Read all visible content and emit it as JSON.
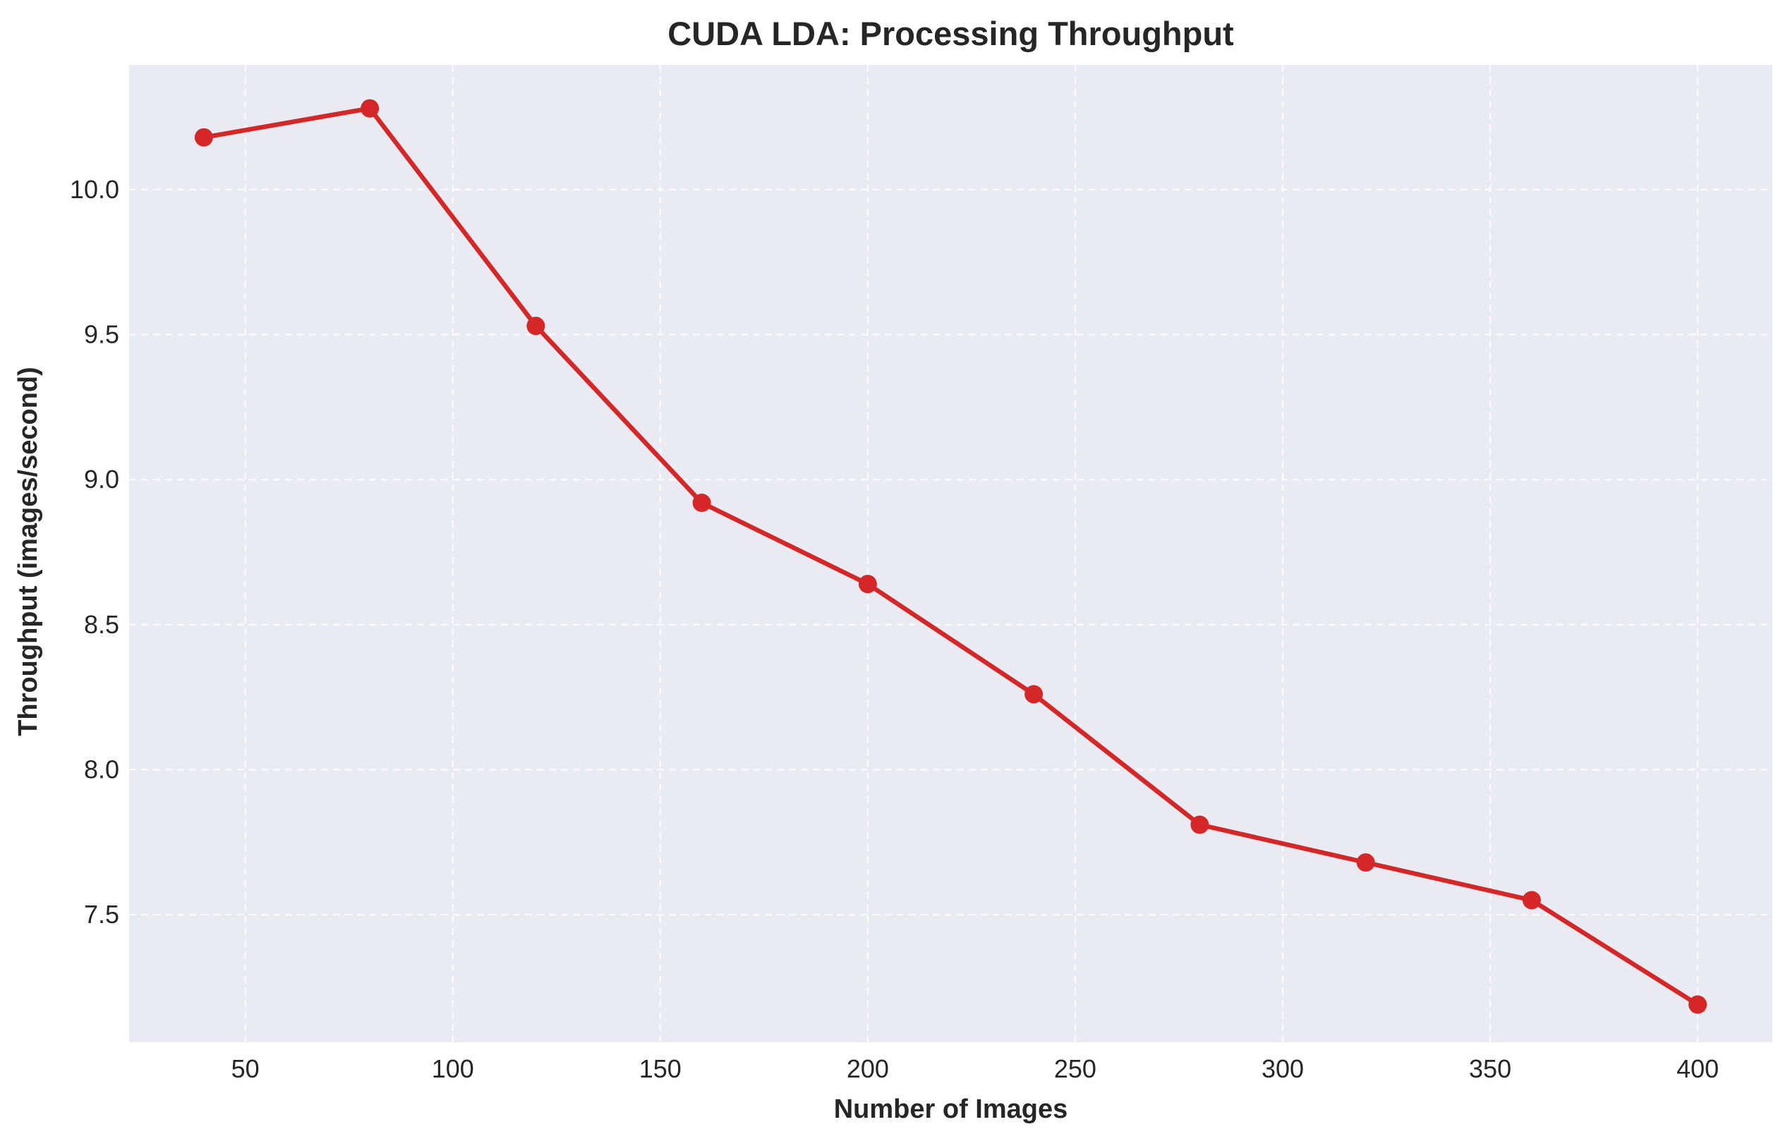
{
  "chart_data": {
    "type": "line",
    "title": "CUDA LDA: Processing Throughput",
    "xlabel": "Number of Images",
    "ylabel": "Throughput (images/second)",
    "xlim": [
      22,
      418
    ],
    "ylim": [
      7.06,
      10.43
    ],
    "xticks": [
      50,
      100,
      150,
      200,
      250,
      300,
      350,
      400
    ],
    "yticks": [
      7.5,
      8.0,
      8.5,
      9.0,
      9.5,
      10.0
    ],
    "ytick_labels": [
      "7.5",
      "8.0",
      "8.5",
      "9.0",
      "9.5",
      "10.0"
    ],
    "grid": true,
    "background_color": "#eaeaf2",
    "series": [
      {
        "color": "#d62728",
        "marker": "circle",
        "x": [
          40,
          80,
          120,
          160,
          200,
          240,
          280,
          320,
          360,
          400
        ],
        "y": [
          10.18,
          10.28,
          9.53,
          8.92,
          8.64,
          8.26,
          7.81,
          7.68,
          7.55,
          7.19
        ]
      }
    ]
  }
}
